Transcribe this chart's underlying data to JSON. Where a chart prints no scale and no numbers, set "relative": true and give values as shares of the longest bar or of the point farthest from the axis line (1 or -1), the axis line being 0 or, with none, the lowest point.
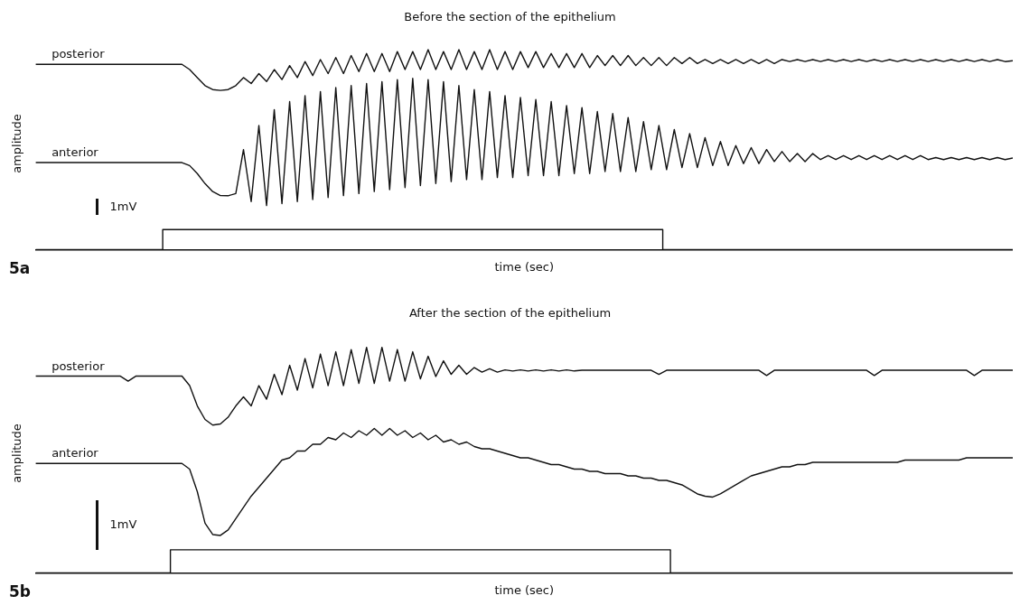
{
  "chart_data": [
    {
      "type": "line",
      "title": "Before the section of the epithelium",
      "xlabel": "time (sec)",
      "ylabel": "amplitude",
      "relative": true,
      "tick_labels": false,
      "annotations": [
        "1mV",
        "5a"
      ],
      "categories": [
        null,
        null,
        null,
        null,
        null,
        null,
        null,
        null,
        null,
        null,
        null,
        null,
        null,
        null,
        null,
        null,
        null,
        null,
        null,
        null,
        null,
        null,
        null,
        null,
        null,
        null,
        null,
        null,
        null,
        null,
        null,
        null,
        null,
        null,
        null,
        null,
        null,
        null,
        null,
        null,
        null,
        null,
        null,
        null,
        null,
        null,
        null,
        null,
        null,
        null,
        null,
        null,
        null,
        null,
        null,
        null,
        null,
        null,
        null,
        null,
        null,
        null,
        null,
        null,
        null,
        null,
        null,
        null,
        null,
        null,
        null,
        null,
        null,
        null,
        null,
        null,
        null,
        null,
        null,
        null,
        null,
        null,
        null,
        null,
        null,
        null,
        null,
        null,
        null,
        null,
        null,
        null,
        null,
        null,
        null,
        null,
        null,
        null,
        null,
        null,
        null,
        null,
        null,
        null,
        null,
        null,
        null,
        null,
        null,
        null,
        null,
        null,
        null,
        null,
        null,
        null,
        null,
        null,
        null,
        null,
        null,
        null,
        null,
        null,
        null,
        null,
        null,
        null
      ],
      "series": [
        {
          "name": "posterior",
          "color": "#111111",
          "values": [
            0.926,
            0.926,
            0.926,
            0.926,
            0.926,
            0.926,
            0.926,
            0.926,
            0.926,
            0.926,
            0.926,
            0.926,
            0.926,
            0.926,
            0.926,
            0.926,
            0.926,
            0.926,
            0.926,
            0.926,
            0.9,
            0.86,
            0.82,
            0.8,
            0.796,
            0.8,
            0.82,
            0.86,
            0.83,
            0.88,
            0.84,
            0.9,
            0.85,
            0.92,
            0.86,
            0.94,
            0.87,
            0.95,
            0.88,
            0.96,
            0.88,
            0.97,
            0.89,
            0.98,
            0.89,
            0.98,
            0.89,
            0.99,
            0.9,
            0.99,
            0.9,
            1.0,
            0.9,
            0.99,
            0.9,
            1.0,
            0.9,
            0.99,
            0.9,
            1.0,
            0.9,
            0.99,
            0.9,
            0.99,
            0.91,
            0.99,
            0.91,
            0.98,
            0.91,
            0.98,
            0.91,
            0.98,
            0.91,
            0.97,
            0.92,
            0.97,
            0.92,
            0.97,
            0.92,
            0.96,
            0.92,
            0.96,
            0.92,
            0.96,
            0.93,
            0.96,
            0.93,
            0.95,
            0.93,
            0.95,
            0.93,
            0.95,
            0.93,
            0.95,
            0.93,
            0.95,
            0.93,
            0.95,
            0.94,
            0.95,
            0.94,
            0.95,
            0.94,
            0.95,
            0.94,
            0.95,
            0.94,
            0.95,
            0.94,
            0.95,
            0.94,
            0.95,
            0.94,
            0.95,
            0.94,
            0.95,
            0.94,
            0.95,
            0.94,
            0.95,
            0.94,
            0.95,
            0.94,
            0.95,
            0.94,
            0.95,
            0.94,
            0.944
          ]
        },
        {
          "name": "anterior",
          "color": "#111111",
          "values": [
            0.435,
            0.435,
            0.435,
            0.435,
            0.435,
            0.435,
            0.435,
            0.435,
            0.435,
            0.435,
            0.435,
            0.435,
            0.435,
            0.435,
            0.435,
            0.435,
            0.435,
            0.435,
            0.435,
            0.435,
            0.42,
            0.38,
            0.33,
            0.29,
            0.27,
            0.269,
            0.28,
            0.5,
            0.24,
            0.62,
            0.22,
            0.7,
            0.23,
            0.74,
            0.24,
            0.77,
            0.25,
            0.79,
            0.26,
            0.81,
            0.27,
            0.82,
            0.28,
            0.83,
            0.29,
            0.84,
            0.3,
            0.85,
            0.31,
            0.856,
            0.32,
            0.85,
            0.33,
            0.84,
            0.34,
            0.82,
            0.35,
            0.8,
            0.35,
            0.79,
            0.36,
            0.77,
            0.36,
            0.76,
            0.37,
            0.75,
            0.37,
            0.74,
            0.37,
            0.72,
            0.38,
            0.71,
            0.38,
            0.69,
            0.39,
            0.68,
            0.39,
            0.66,
            0.39,
            0.64,
            0.4,
            0.62,
            0.4,
            0.6,
            0.41,
            0.58,
            0.41,
            0.56,
            0.42,
            0.54,
            0.42,
            0.52,
            0.43,
            0.51,
            0.43,
            0.5,
            0.44,
            0.49,
            0.44,
            0.48,
            0.44,
            0.48,
            0.45,
            0.47,
            0.45,
            0.47,
            0.45,
            0.47,
            0.45,
            0.47,
            0.45,
            0.47,
            0.45,
            0.47,
            0.45,
            0.47,
            0.45,
            0.46,
            0.45,
            0.46,
            0.45,
            0.46,
            0.45,
            0.46,
            0.45,
            0.46,
            0.45,
            0.458
          ]
        },
        {
          "type": "step",
          "color": "#111111",
          "values": [
            0,
            0,
            0,
            0,
            0,
            0,
            0,
            0,
            0,
            0,
            0,
            0,
            0,
            0,
            0,
            0,
            0,
            0.1,
            0.1,
            0.1,
            0.1,
            0.1,
            0.1,
            0.1,
            0.1,
            0.1,
            0.1,
            0.1,
            0.1,
            0.1,
            0.1,
            0.1,
            0.1,
            0.1,
            0.1,
            0.1,
            0.1,
            0.1,
            0.1,
            0.1,
            0.1,
            0.1,
            0.1,
            0.1,
            0.1,
            0.1,
            0.1,
            0.1,
            0.1,
            0.1,
            0.1,
            0.1,
            0.1,
            0.1,
            0.1,
            0.1,
            0.1,
            0.1,
            0.1,
            0.1,
            0.1,
            0.1,
            0.1,
            0.1,
            0.1,
            0.1,
            0.1,
            0.1,
            0.1,
            0.1,
            0.1,
            0.1,
            0.1,
            0.1,
            0.1,
            0.1,
            0.1,
            0.1,
            0.1,
            0.1,
            0.1,
            0.1,
            0,
            0,
            0,
            0,
            0,
            0,
            0,
            0,
            0,
            0,
            0,
            0,
            0,
            0,
            0,
            0,
            0,
            0,
            0,
            0,
            0,
            0,
            0,
            0,
            0,
            0,
            0,
            0,
            0,
            0,
            0,
            0,
            0,
            0,
            0,
            0,
            0,
            0,
            0,
            0,
            0,
            0,
            0,
            0,
            0,
            0
          ]
        }
      ]
    },
    {
      "type": "line",
      "title": "After the section of the epithelium",
      "xlabel": "time (sec)",
      "ylabel": "amplitude",
      "relative": true,
      "tick_labels": false,
      "annotations": [
        "1mV",
        "5b"
      ],
      "categories": [
        null,
        null,
        null,
        null,
        null,
        null,
        null,
        null,
        null,
        null,
        null,
        null,
        null,
        null,
        null,
        null,
        null,
        null,
        null,
        null,
        null,
        null,
        null,
        null,
        null,
        null,
        null,
        null,
        null,
        null,
        null,
        null,
        null,
        null,
        null,
        null,
        null,
        null,
        null,
        null,
        null,
        null,
        null,
        null,
        null,
        null,
        null,
        null,
        null,
        null,
        null,
        null,
        null,
        null,
        null,
        null,
        null,
        null,
        null,
        null,
        null,
        null,
        null,
        null,
        null,
        null,
        null,
        null,
        null,
        null,
        null,
        null,
        null,
        null,
        null,
        null,
        null,
        null,
        null,
        null,
        null,
        null,
        null,
        null,
        null,
        null,
        null,
        null,
        null,
        null,
        null,
        null,
        null,
        null,
        null,
        null,
        null,
        null,
        null,
        null,
        null,
        null,
        null,
        null,
        null,
        null,
        null,
        null,
        null,
        null,
        null,
        null,
        null,
        null,
        null,
        null,
        null,
        null,
        null,
        null,
        null,
        null,
        null,
        null,
        null,
        null,
        null,
        null
      ],
      "series": [
        {
          "name": "posterior",
          "color": "#111111",
          "values": [
            0.872,
            0.872,
            0.872,
            0.872,
            0.872,
            0.872,
            0.872,
            0.872,
            0.872,
            0.872,
            0.872,
            0.872,
            0.85,
            0.872,
            0.872,
            0.872,
            0.872,
            0.872,
            0.872,
            0.872,
            0.83,
            0.74,
            0.68,
            0.655,
            0.66,
            0.69,
            0.74,
            0.78,
            0.74,
            0.83,
            0.77,
            0.88,
            0.79,
            0.92,
            0.81,
            0.95,
            0.82,
            0.97,
            0.83,
            0.98,
            0.83,
            0.99,
            0.84,
            1.0,
            0.84,
            1.0,
            0.85,
            0.99,
            0.85,
            0.98,
            0.86,
            0.96,
            0.87,
            0.94,
            0.88,
            0.92,
            0.88,
            0.91,
            0.89,
            0.905,
            0.89,
            0.9,
            0.895,
            0.9,
            0.895,
            0.9,
            0.895,
            0.9,
            0.895,
            0.9,
            0.895,
            0.898,
            0.898,
            0.898,
            0.898,
            0.898,
            0.898,
            0.898,
            0.898,
            0.898,
            0.898,
            0.88,
            0.898,
            0.898,
            0.898,
            0.898,
            0.898,
            0.898,
            0.898,
            0.898,
            0.898,
            0.898,
            0.898,
            0.898,
            0.898,
            0.875,
            0.898,
            0.898,
            0.898,
            0.898,
            0.898,
            0.898,
            0.898,
            0.898,
            0.898,
            0.898,
            0.898,
            0.898,
            0.898,
            0.875,
            0.898,
            0.898,
            0.898,
            0.898,
            0.898,
            0.898,
            0.898,
            0.898,
            0.898,
            0.898,
            0.898,
            0.898,
            0.875,
            0.898,
            0.898,
            0.898,
            0.898,
            0.898
          ]
        },
        {
          "name": "anterior",
          "color": "#111111",
          "values": [
            0.485,
            0.485,
            0.485,
            0.485,
            0.485,
            0.485,
            0.485,
            0.485,
            0.485,
            0.485,
            0.485,
            0.485,
            0.485,
            0.485,
            0.485,
            0.485,
            0.485,
            0.485,
            0.485,
            0.485,
            0.46,
            0.36,
            0.22,
            0.17,
            0.166,
            0.19,
            0.24,
            0.29,
            0.34,
            0.38,
            0.42,
            0.46,
            0.5,
            0.51,
            0.54,
            0.54,
            0.57,
            0.57,
            0.6,
            0.59,
            0.62,
            0.6,
            0.63,
            0.61,
            0.64,
            0.61,
            0.64,
            0.61,
            0.63,
            0.6,
            0.62,
            0.59,
            0.61,
            0.58,
            0.59,
            0.57,
            0.58,
            0.56,
            0.55,
            0.55,
            0.54,
            0.53,
            0.52,
            0.51,
            0.51,
            0.5,
            0.49,
            0.48,
            0.48,
            0.47,
            0.46,
            0.46,
            0.45,
            0.45,
            0.44,
            0.44,
            0.44,
            0.43,
            0.43,
            0.42,
            0.42,
            0.41,
            0.41,
            0.4,
            0.39,
            0.37,
            0.35,
            0.34,
            0.336,
            0.35,
            0.37,
            0.39,
            0.41,
            0.43,
            0.44,
            0.45,
            0.46,
            0.47,
            0.47,
            0.48,
            0.48,
            0.49,
            0.49,
            0.49,
            0.49,
            0.49,
            0.49,
            0.49,
            0.49,
            0.49,
            0.49,
            0.49,
            0.49,
            0.5,
            0.5,
            0.5,
            0.5,
            0.5,
            0.5,
            0.5,
            0.5,
            0.51,
            0.51,
            0.51,
            0.51,
            0.51,
            0.51,
            0.51
          ]
        },
        {
          "type": "step",
          "color": "#111111",
          "values": [
            0,
            0,
            0,
            0,
            0,
            0,
            0,
            0,
            0,
            0,
            0,
            0,
            0,
            0,
            0,
            0,
            0,
            0,
            0.102,
            0.102,
            0.102,
            0.102,
            0.102,
            0.102,
            0.102,
            0.102,
            0.102,
            0.102,
            0.102,
            0.102,
            0.102,
            0.102,
            0.102,
            0.102,
            0.102,
            0.102,
            0.102,
            0.102,
            0.102,
            0.102,
            0.102,
            0.102,
            0.102,
            0.102,
            0.102,
            0.102,
            0.102,
            0.102,
            0.102,
            0.102,
            0.102,
            0.102,
            0.102,
            0.102,
            0.102,
            0.102,
            0.102,
            0.102,
            0.102,
            0.102,
            0.102,
            0.102,
            0.102,
            0.102,
            0.102,
            0.102,
            0.102,
            0.102,
            0.102,
            0.102,
            0.102,
            0.102,
            0.102,
            0.102,
            0.102,
            0.102,
            0.102,
            0.102,
            0.102,
            0.102,
            0.102,
            0.102,
            0.102,
            0,
            0,
            0,
            0,
            0,
            0,
            0,
            0,
            0,
            0,
            0,
            0,
            0,
            0,
            0,
            0,
            0,
            0,
            0,
            0,
            0,
            0,
            0,
            0,
            0,
            0,
            0,
            0,
            0,
            0,
            0,
            0,
            0,
            0,
            0,
            0,
            0,
            0,
            0,
            0,
            0,
            0,
            0,
            0,
            0
          ]
        }
      ]
    }
  ]
}
